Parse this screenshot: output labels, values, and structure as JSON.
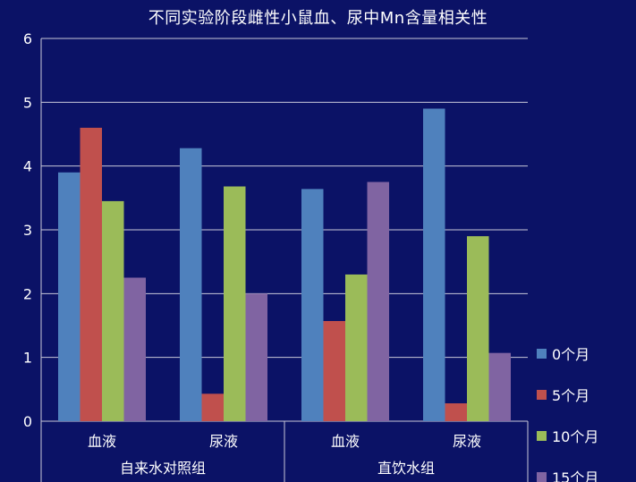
{
  "chart_data": {
    "type": "bar",
    "title": "不同实验阶段雌性小鼠血、尿中Mn含量相关性",
    "xlabel": "",
    "ylabel": "",
    "ylim": [
      0,
      6
    ],
    "yticks": [
      "0",
      "1",
      "2",
      "3",
      "4",
      "5",
      "6"
    ],
    "grid": true,
    "legend_position": "right",
    "categories": [
      "血液",
      "尿液",
      "血液",
      "尿液"
    ],
    "groups": [
      {
        "label": "自来水对照组",
        "span": [
          0,
          1
        ]
      },
      {
        "label": "直饮水组",
        "span": [
          2,
          3
        ]
      }
    ],
    "series": [
      {
        "name": "0个月",
        "color": "#4f81bd",
        "values": [
          3.9,
          4.28,
          3.64,
          4.9
        ]
      },
      {
        "name": "5个月",
        "color": "#c0504d",
        "values": [
          4.6,
          0.43,
          1.57,
          0.28
        ]
      },
      {
        "name": "10个月",
        "color": "#9bbb59",
        "values": [
          3.45,
          3.68,
          2.3,
          2.9
        ]
      },
      {
        "name": "15个月",
        "color": "#8064a2",
        "values": [
          2.25,
          2.0,
          3.75,
          1.07
        ]
      }
    ]
  },
  "colors": {
    "background": "#0b1266",
    "axis": "#c8c8d8",
    "text": "#ffffff"
  }
}
